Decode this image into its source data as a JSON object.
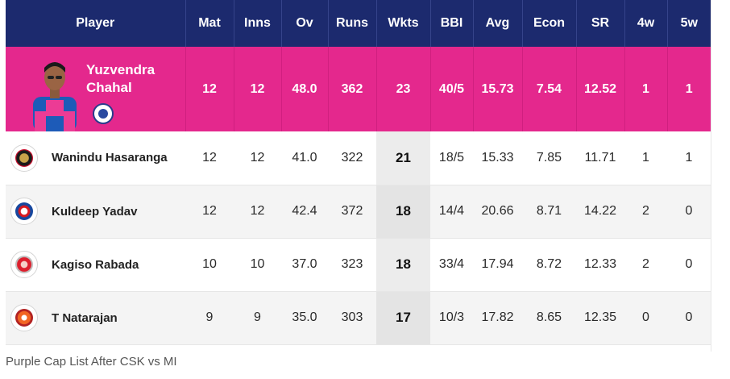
{
  "columns": [
    "Player",
    "Mat",
    "Inns",
    "Ov",
    "Runs",
    "Wkts",
    "BBI",
    "Avg",
    "Econ",
    "SR",
    "4w",
    "5w"
  ],
  "leader": {
    "name_line1": "Yuzvendra",
    "name_line2": "Chahal",
    "team_icon": "rajasthan-royals-badge",
    "stats": [
      "12",
      "12",
      "48.0",
      "362",
      "23",
      "40/5",
      "15.73",
      "7.54",
      "12.52",
      "1",
      "1"
    ]
  },
  "rows": [
    {
      "name": "Wanindu Hasaranga",
      "team_icon": "rcb-logo",
      "stats": [
        "12",
        "12",
        "41.0",
        "322",
        "21",
        "18/5",
        "15.33",
        "7.85",
        "11.71",
        "1",
        "1"
      ]
    },
    {
      "name": "Kuldeep Yadav",
      "team_icon": "delhi-capitals-logo",
      "stats": [
        "12",
        "12",
        "42.4",
        "372",
        "18",
        "14/4",
        "20.66",
        "8.71",
        "14.22",
        "2",
        "0"
      ]
    },
    {
      "name": "Kagiso Rabada",
      "team_icon": "punjab-kings-logo",
      "stats": [
        "10",
        "10",
        "37.0",
        "323",
        "18",
        "33/4",
        "17.94",
        "8.72",
        "12.33",
        "2",
        "0"
      ]
    },
    {
      "name": "T Natarajan",
      "team_icon": "sunrisers-hyderabad-logo",
      "stats": [
        "9",
        "9",
        "35.0",
        "303",
        "17",
        "10/3",
        "17.82",
        "8.65",
        "12.35",
        "0",
        "0"
      ]
    }
  ],
  "caption": "Purple Cap List After CSK vs MI",
  "colors": {
    "header": "#1c2a6e",
    "leader": "#e4288d"
  }
}
